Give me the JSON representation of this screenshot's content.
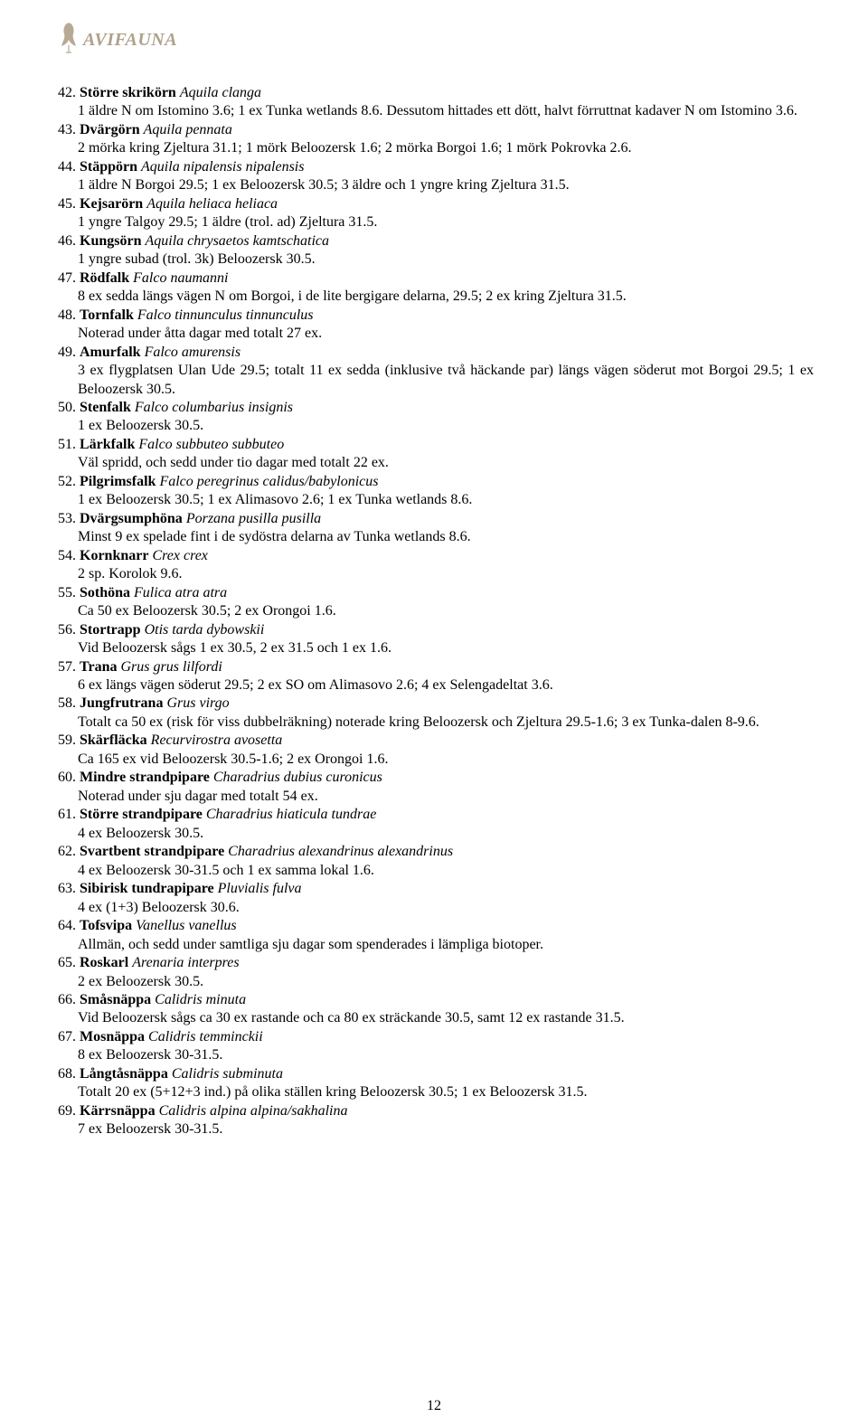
{
  "brand": "AVIFAUNA",
  "colors": {
    "brand": "#b0a18c",
    "text": "#000000",
    "background": "#ffffff"
  },
  "page_number": "12",
  "entries": [
    {
      "num": "42.",
      "name_sv": "Större skrikörn",
      "name_la": "Aquila clanga",
      "detail": "1 äldre N om Istomino 3.6; 1 ex Tunka wetlands 8.6. Dessutom hittades ett dött, halvt förruttnat kadaver N om Istomino 3.6."
    },
    {
      "num": "43.",
      "name_sv": "Dvärgörn",
      "name_la": "Aquila pennata",
      "detail": "2 mörka kring Zjeltura 31.1; 1 mörk Beloozersk 1.6; 2 mörka Borgoi 1.6; 1 mörk Pokrovka 2.6."
    },
    {
      "num": "44.",
      "name_sv": "Stäppörn",
      "name_la": "Aquila nipalensis nipalensis",
      "detail": "1 äldre N Borgoi 29.5; 1 ex Beloozersk 30.5; 3 äldre och 1 yngre kring Zjeltura 31.5."
    },
    {
      "num": "45.",
      "name_sv": "Kejsarörn",
      "name_la": "Aquila heliaca heliaca",
      "detail": "1 yngre Talgoy 29.5; 1 äldre (trol. ad) Zjeltura 31.5."
    },
    {
      "num": "46.",
      "name_sv": "Kungsörn",
      "name_la": "Aquila chrysaetos kamtschatica",
      "detail": "1 yngre subad (trol. 3k) Beloozersk 30.5."
    },
    {
      "num": "47.",
      "name_sv": "Rödfalk",
      "name_la": "Falco naumanni",
      "detail": "8 ex sedda längs vägen N om Borgoi, i de lite bergigare delarna, 29.5; 2 ex kring Zjeltura 31.5."
    },
    {
      "num": "48.",
      "name_sv": "Tornfalk",
      "name_la": "Falco tinnunculus tinnunculus",
      "detail": "Noterad under åtta dagar med totalt 27 ex."
    },
    {
      "num": "49.",
      "name_sv": "Amurfalk",
      "name_la": "Falco amurensis",
      "detail": "3 ex flygplatsen Ulan Ude 29.5; totalt 11 ex sedda (inklusive två häckande par) längs vägen söderut mot Borgoi 29.5; 1 ex Beloozersk 30.5."
    },
    {
      "num": "50.",
      "name_sv": "Stenfalk",
      "name_la": "Falco columbarius insignis",
      "detail": "1 ex Beloozersk 30.5."
    },
    {
      "num": "51.",
      "name_sv": "Lärkfalk",
      "name_la": "Falco subbuteo subbuteo",
      "detail": "Väl spridd, och sedd under tio dagar med totalt 22 ex."
    },
    {
      "num": "52.",
      "name_sv": "Pilgrimsfalk",
      "name_la": "Falco peregrinus calidus/babylonicus",
      "detail": "1 ex Beloozersk 30.5; 1 ex Alimasovo 2.6; 1 ex Tunka wetlands 8.6."
    },
    {
      "num": "53.",
      "name_sv": "Dvärgsumphöna",
      "name_la": "Porzana pusilla pusilla",
      "detail": "Minst 9 ex spelade fint i de sydöstra delarna av Tunka wetlands 8.6."
    },
    {
      "num": "54.",
      "name_sv": "Kornknarr",
      "name_la": "Crex crex",
      "detail": "2 sp. Korolok 9.6."
    },
    {
      "num": "55.",
      "name_sv": "Sothöna",
      "name_la": "Fulica atra atra",
      "detail": "Ca 50 ex Beloozersk 30.5; 2 ex Orongoi 1.6."
    },
    {
      "num": "56.",
      "name_sv": "Stortrapp",
      "name_la": "Otis tarda dybowskii",
      "detail": "Vid Beloozersk sågs 1 ex 30.5, 2 ex 31.5 och 1 ex 1.6."
    },
    {
      "num": "57.",
      "name_sv": "Trana",
      "name_la": "Grus grus lilfordi",
      "detail": "6 ex längs vägen söderut 29.5; 2 ex SO om Alimasovo 2.6; 4 ex Selengadeltat 3.6."
    },
    {
      "num": "58.",
      "name_sv": "Jungfrutrana",
      "name_la": "Grus virgo",
      "detail": "Totalt ca 50 ex (risk för viss dubbelräkning) noterade kring Beloozersk och Zjeltura 29.5-1.6; 3 ex Tunka-dalen 8-9.6."
    },
    {
      "num": "59.",
      "name_sv": "Skärfläcka",
      "name_la": "Recurvirostra avosetta",
      "detail": "Ca 165 ex vid Beloozersk 30.5-1.6; 2 ex Orongoi 1.6."
    },
    {
      "num": "60.",
      "name_sv": "Mindre strandpipare",
      "name_la": "Charadrius dubius curonicus",
      "detail": "Noterad under sju dagar med totalt 54 ex."
    },
    {
      "num": "61.",
      "name_sv": "Större strandpipare",
      "name_la": "Charadrius hiaticula tundrae",
      "detail": "4 ex Beloozersk 30.5."
    },
    {
      "num": "62.",
      "name_sv": "Svartbent strandpipare",
      "name_la": "Charadrius alexandrinus alexandrinus",
      "detail": "4 ex Beloozersk 30-31.5 och 1 ex samma lokal 1.6."
    },
    {
      "num": "63.",
      "name_sv": "Sibirisk tundrapipare",
      "name_la": "Pluvialis fulva",
      "detail": "4 ex (1+3) Beloozersk 30.6."
    },
    {
      "num": "64.",
      "name_sv": "Tofsvipa",
      "name_la": "Vanellus vanellus",
      "detail": "Allmän, och sedd under samtliga sju dagar som spenderades i lämpliga biotoper."
    },
    {
      "num": "65.",
      "name_sv": "Roskarl",
      "name_la": "Arenaria interpres",
      "detail": "2 ex Beloozersk 30.5."
    },
    {
      "num": "66.",
      "name_sv": "Småsnäppa",
      "name_la": "Calidris minuta",
      "detail": "Vid Beloozersk sågs ca 30 ex rastande och ca 80 ex sträckande 30.5, samt 12 ex rastande 31.5."
    },
    {
      "num": "67.",
      "name_sv": "Mosnäppa",
      "name_la": "Calidris temminckii",
      "detail": "8 ex Beloozersk 30-31.5."
    },
    {
      "num": "68.",
      "name_sv": "Långtåsnäppa",
      "name_la": "Calidris subminuta",
      "detail": "Totalt 20 ex (5+12+3 ind.) på olika ställen kring Beloozersk 30.5; 1 ex Beloozersk 31.5."
    },
    {
      "num": "69.",
      "name_sv": "Kärrsnäppa",
      "name_la": "Calidris alpina alpina/sakhalina",
      "detail": "7 ex Beloozersk 30-31.5."
    }
  ]
}
